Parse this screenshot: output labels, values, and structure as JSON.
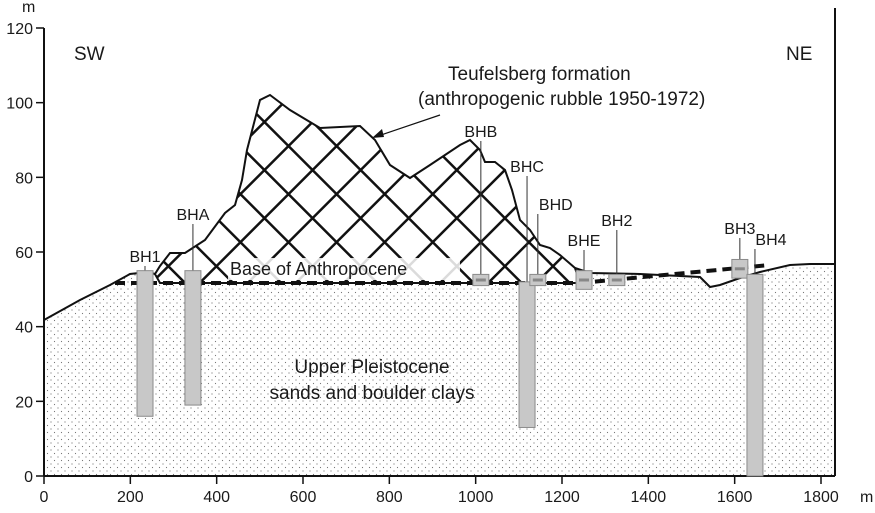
{
  "axes": {
    "y_unit": "m",
    "x_unit": "m",
    "y_ticks": [
      "0",
      "20",
      "40",
      "60",
      "80",
      "100",
      "120"
    ],
    "x_ticks": [
      "0",
      "200",
      "400",
      "600",
      "800",
      "1000",
      "1200",
      "1400",
      "1600",
      "1800"
    ],
    "xlim": [
      0,
      1800
    ],
    "ylim": [
      0,
      120
    ]
  },
  "orientation": {
    "left": "SW",
    "right": "NE"
  },
  "labels": {
    "formation_line1": "Teufelsberg formation",
    "formation_line2": "(anthropogenic rubble 1950-1972)",
    "base": "Base of Anthropocene",
    "sand_line1": "Upper Pleistocene",
    "sand_line2": "sands and boulder clays"
  },
  "boreholes": [
    {
      "name": "BH1",
      "x": 234,
      "top": 55,
      "bottom": 16,
      "type": "column"
    },
    {
      "name": "BHA",
      "x": 345,
      "top": 55,
      "bottom": 19,
      "type": "column"
    },
    {
      "name": "BHB",
      "x": 1012,
      "top": 54,
      "bottom": 51,
      "type": "box"
    },
    {
      "name": "BHC",
      "x": 1119,
      "top": 52,
      "bottom": 13,
      "type": "column"
    },
    {
      "name": "BHD",
      "x": 1144,
      "top": 54,
      "bottom": 51,
      "type": "box"
    },
    {
      "name": "BHE",
      "x": 1251,
      "top": 55,
      "bottom": 50,
      "type": "box"
    },
    {
      "name": "BH2",
      "x": 1327,
      "top": 54,
      "bottom": 51,
      "type": "box"
    },
    {
      "name": "BH3",
      "x": 1612,
      "top": 58,
      "bottom": 53,
      "type": "box"
    },
    {
      "name": "BH4",
      "x": 1647,
      "top": 54,
      "bottom": 0,
      "type": "column"
    }
  ],
  "colors": {
    "borehole_fill": "#c8c8c8",
    "borehole_stroke": "#8a8a8a",
    "line": "#111111"
  }
}
